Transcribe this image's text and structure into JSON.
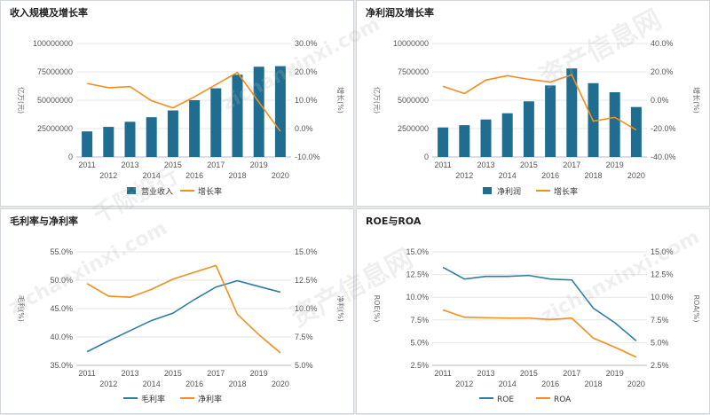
{
  "watermark": {
    "text": "资产信息网",
    "url": "zichanxinxi.com",
    "text2": "千际投行"
  },
  "colors": {
    "bar": "#1f6e91",
    "orange": "#f28e1c",
    "line_blue": "#2d7ea3",
    "grid": "#e6e6e6",
    "axis_text": "#555555"
  },
  "chart_data": [
    {
      "type": "bar",
      "title": "收入规模及增长率",
      "x": [
        "2011",
        "2012",
        "2013",
        "2014",
        "2015",
        "2016",
        "2017",
        "2018",
        "2019",
        "2020"
      ],
      "series": [
        {
          "name": "营业收入",
          "type": "bar",
          "axis": "left",
          "values": [
            22500000,
            26500000,
            31000000,
            35000000,
            41000000,
            50000000,
            60500000,
            72500000,
            79500000,
            80000000
          ]
        },
        {
          "name": "增长率",
          "type": "line",
          "axis": "right",
          "values": [
            15.9,
            14.4,
            14.8,
            9.8,
            7.3,
            11.2,
            15.5,
            19.8,
            9.3,
            -1.0
          ]
        }
      ],
      "ylabel_left": "亿万(元)",
      "ylabel_right": "增长(%)",
      "left_ticks": [
        "0",
        "25000000",
        "50000000",
        "75000000",
        "100000000"
      ],
      "right_ticks": [
        "-10.0%",
        "0.0%",
        "10.0%",
        "20.0%",
        "30.0%"
      ],
      "ylim_left": [
        0,
        100000000
      ],
      "ylim_right": [
        -10,
        30
      ]
    },
    {
      "type": "bar",
      "title": "净利润及增长率",
      "x": [
        "2011",
        "2012",
        "2013",
        "2014",
        "2015",
        "2016",
        "2017",
        "2018",
        "2019",
        "2020"
      ],
      "series": [
        {
          "name": "净利润",
          "type": "bar",
          "axis": "left",
          "values": [
            2600000,
            2800000,
            3300000,
            3850000,
            4900000,
            6300000,
            7800000,
            6500000,
            5700000,
            4400000
          ]
        },
        {
          "name": "增长率",
          "type": "line",
          "axis": "right",
          "values": [
            9.8,
            4.7,
            14.2,
            17.3,
            14.7,
            12.8,
            17.9,
            -14.8,
            -12.1,
            -21.0
          ]
        }
      ],
      "ylabel_left": "亿万(元)",
      "ylabel_right": "增长(%)",
      "left_ticks": [
        "0",
        "2500000",
        "5000000",
        "7500000",
        "10000000"
      ],
      "right_ticks": [
        "-40.0%",
        "-20.0%",
        "0.0%",
        "20.0%",
        "40.0%"
      ],
      "ylim_left": [
        0,
        10000000
      ],
      "ylim_right": [
        -40,
        40
      ]
    },
    {
      "type": "line",
      "title": "毛利率与净利率",
      "x": [
        "2011",
        "2012",
        "2013",
        "2014",
        "2015",
        "2016",
        "2017",
        "2018",
        "2019",
        "2020"
      ],
      "series": [
        {
          "name": "毛利率",
          "axis": "left",
          "color": "line_blue",
          "values": [
            37.4,
            39.3,
            41.1,
            42.9,
            44.2,
            46.6,
            48.8,
            49.9,
            48.9,
            47.9
          ]
        },
        {
          "name": "净利率",
          "axis": "right",
          "color": "orange",
          "values": [
            12.2,
            11.1,
            11.0,
            11.7,
            12.6,
            13.2,
            13.8,
            9.5,
            7.7,
            6.1
          ]
        }
      ],
      "ylabel_left": "毛利(%)",
      "ylabel_right": "净利(%)",
      "left_ticks": [
        "35.0%",
        "40.0%",
        "45.0%",
        "50.0%",
        "55.0%"
      ],
      "right_ticks": [
        "5.0%",
        "7.5%",
        "10.0%",
        "12.5%",
        "15.0%"
      ],
      "ylim_left": [
        35,
        55
      ],
      "ylim_right": [
        5,
        15
      ]
    },
    {
      "type": "line",
      "title": "ROE与ROA",
      "x": [
        "2011",
        "2012",
        "2013",
        "2014",
        "2015",
        "2016",
        "2017",
        "2018",
        "2019",
        "2020"
      ],
      "series": [
        {
          "name": "ROE",
          "axis": "left",
          "color": "line_blue",
          "values": [
            13.3,
            12.0,
            12.3,
            12.3,
            12.4,
            12.0,
            11.9,
            8.8,
            7.2,
            5.2
          ]
        },
        {
          "name": "ROA",
          "axis": "right",
          "color": "orange",
          "values": [
            8.6,
            7.8,
            7.75,
            7.7,
            7.7,
            7.55,
            7.7,
            5.5,
            4.5,
            3.4
          ]
        }
      ],
      "ylabel_left": "ROE(%)",
      "ylabel_right": "ROA(%)",
      "left_ticks": [
        "2.5%",
        "5.0%",
        "7.5%",
        "10.0%",
        "12.5%",
        "15.0%"
      ],
      "right_ticks": [
        "2.5%",
        "5.0%",
        "7.5%",
        "10.0%",
        "12.5%",
        "15.0%"
      ],
      "ylim_left": [
        2.5,
        15
      ],
      "ylim_right": [
        2.5,
        15
      ]
    }
  ]
}
